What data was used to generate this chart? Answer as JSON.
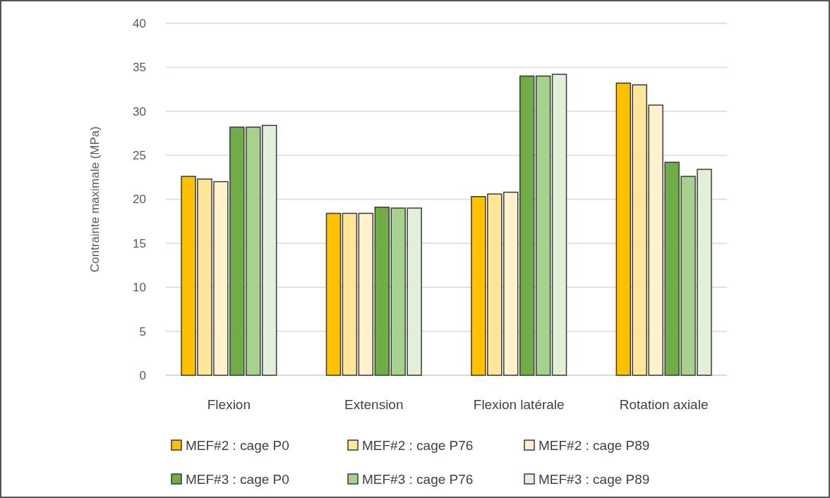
{
  "chart_data": {
    "type": "bar",
    "ylabel": "Contrainte maximale (MPa)",
    "categories": [
      "Flexion",
      "Extension",
      "Flexion latérale",
      "Rotation axiale"
    ],
    "series": [
      {
        "name": "MEF#2 : cage P0",
        "color": "#ffc000",
        "values": [
          22.6,
          18.4,
          20.3,
          33.2
        ]
      },
      {
        "name": "MEF#2 : cage P76",
        "color": "#ffe699",
        "values": [
          22.3,
          18.4,
          20.6,
          33.0
        ]
      },
      {
        "name": "MEF#2 : cage P89",
        "color": "#fff2cc",
        "values": [
          22.0,
          18.4,
          20.8,
          30.7
        ]
      },
      {
        "name": "MEF#3 : cage P0",
        "color": "#70ad47",
        "values": [
          28.2,
          19.1,
          34.0,
          24.2
        ]
      },
      {
        "name": "MEF#3 : cage P76",
        "color": "#a9d18e",
        "values": [
          28.2,
          19.0,
          34.0,
          22.6
        ]
      },
      {
        "name": "MEF#3 : cage P89",
        "color": "#e2f0d9",
        "values": [
          28.4,
          19.0,
          34.2,
          23.4
        ]
      }
    ],
    "ylim": [
      0,
      40
    ],
    "yticks": [
      0,
      5,
      10,
      15,
      20,
      25,
      30,
      35,
      40
    ],
    "grid": "y",
    "legend": "bottom"
  }
}
